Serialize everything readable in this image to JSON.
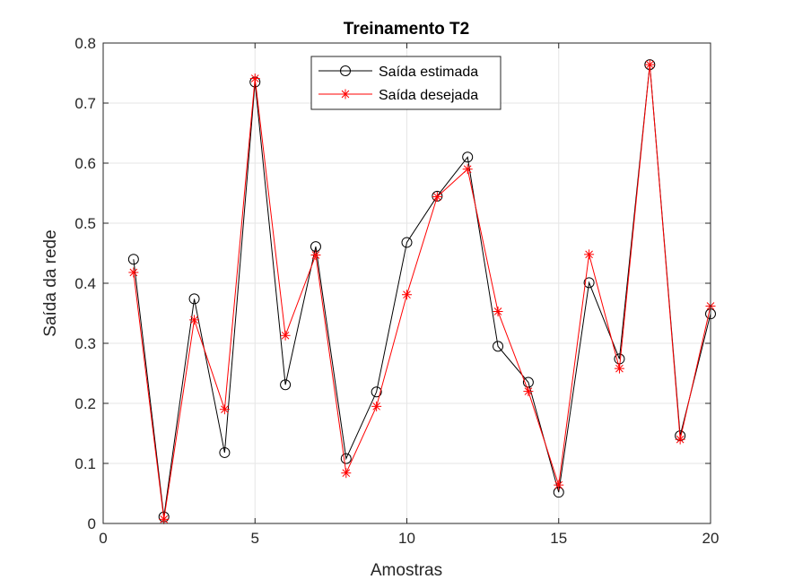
{
  "chart_data": {
    "type": "line",
    "title": "Treinamento T2",
    "xlabel": "Amostras",
    "ylabel": "Saída da rede",
    "xlim": [
      0,
      20
    ],
    "ylim": [
      0,
      0.8
    ],
    "xticks": [
      0,
      5,
      10,
      15,
      20
    ],
    "yticks": [
      0,
      0.1,
      0.2,
      0.3,
      0.4,
      0.5,
      0.6,
      0.7,
      0.8
    ],
    "grid": true,
    "legend_position": "top-center",
    "x": [
      1,
      2,
      3,
      4,
      5,
      6,
      7,
      8,
      9,
      10,
      11,
      12,
      13,
      14,
      15,
      16,
      17,
      18,
      19,
      20
    ],
    "series": [
      {
        "name": "Saída estimada",
        "color": "#000000",
        "marker": "circle",
        "values": [
          0.44,
          0.011,
          0.374,
          0.118,
          0.735,
          0.231,
          0.461,
          0.108,
          0.219,
          0.468,
          0.545,
          0.61,
          0.295,
          0.235,
          0.052,
          0.401,
          0.274,
          0.764,
          0.146,
          0.349
        ]
      },
      {
        "name": "Saída desejada",
        "color": "#ff0000",
        "marker": "asterisk",
        "values": [
          0.418,
          0.007,
          0.339,
          0.19,
          0.741,
          0.313,
          0.447,
          0.084,
          0.195,
          0.381,
          0.544,
          0.59,
          0.353,
          0.22,
          0.064,
          0.448,
          0.258,
          0.764,
          0.14,
          0.362
        ]
      }
    ]
  }
}
